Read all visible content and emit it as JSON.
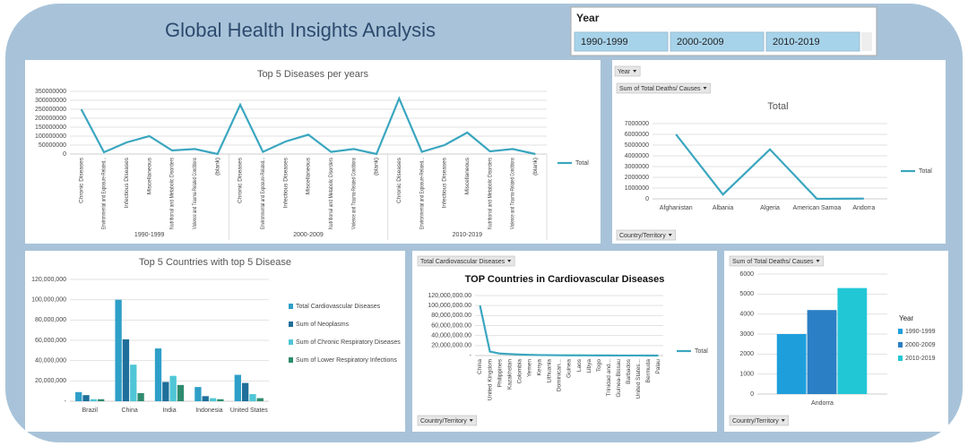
{
  "title": "Global Health Insights Analysis",
  "slicer": {
    "title": "Year",
    "items": [
      "1990-1999",
      "2000-2009",
      "2010-2019"
    ]
  },
  "chart_data": [
    {
      "type": "line",
      "title": "Top 5 Diseases per years",
      "categories": [
        "Chronic Diseases",
        "Environmental and Exposure-Related...",
        "Infectious Diseases",
        "Miscellaneous",
        "Nutritional and Metabolic Disorders",
        "Violence and Trauma-Related Conditions",
        "(blank)",
        "Chronic Diseases",
        "Environmental and Exposure-Related...",
        "Infectious Diseases",
        "Miscellaneous",
        "Nutritional and Metabolic Disorders",
        "Violence and Trauma-Related Conditions",
        "(blank)",
        "Chronic Diseases",
        "Environmental and Exposure-Related...",
        "Infectious Diseases",
        "Miscellaneous",
        "Nutritional and Metabolic Disorders",
        "Violence and Trauma-Related Conditions",
        "(blank)"
      ],
      "groups": [
        "1990-1999",
        "2000-2009",
        "2010-2019"
      ],
      "series": [
        {
          "name": "Total",
          "color": "#3aa6bf",
          "values": [
            250000000,
            10000000,
            65000000,
            100000000,
            20000000,
            28000000,
            0,
            275000000,
            12000000,
            70000000,
            108000000,
            12000000,
            28000000,
            0,
            310000000,
            12000000,
            50000000,
            120000000,
            15000000,
            28000000,
            0
          ]
        }
      ],
      "ylim": [
        0,
        350000000
      ],
      "yticks": [
        0,
        50000000,
        100000000,
        150000000,
        200000000,
        250000000,
        300000000,
        350000000
      ],
      "grid": true
    },
    {
      "type": "line",
      "title": "Total",
      "field_buttons": [
        "Year",
        "Sum of Total Deaths/ Causes",
        "Country/Territory"
      ],
      "categories": [
        "Afghanistan",
        "Albania",
        "Algeria",
        "American Samoa",
        "Andorra"
      ],
      "series": [
        {
          "name": "Total",
          "color": "#3aa6bf",
          "values": [
            6000000,
            400000,
            4600000,
            0,
            20000
          ]
        }
      ],
      "ylim": [
        0,
        7000000
      ],
      "yticks": [
        0,
        1000000,
        2000000,
        3000000,
        4000000,
        5000000,
        6000000,
        7000000
      ],
      "grid": true
    },
    {
      "type": "bar",
      "title": "Top 5 Countries with top 5 Disease",
      "categories": [
        "Brazil",
        "China",
        "India",
        "Indonesia",
        "United States"
      ],
      "series": [
        {
          "name": "Total Cardiovascular Diseases",
          "color": "#2e9fc8",
          "values": [
            9000000,
            100000000,
            52000000,
            14000000,
            26000000
          ]
        },
        {
          "name": "Sum of Neoplasms",
          "color": "#1f6f9a",
          "values": [
            6000000,
            61000000,
            19000000,
            5000000,
            18000000
          ]
        },
        {
          "name": "Sum of Chronic Respiratory Diseases",
          "color": "#4fc6d6",
          "values": [
            2000000,
            36000000,
            25000000,
            3000000,
            7000000
          ]
        },
        {
          "name": "Sum of Lower Respiratory Infections",
          "color": "#2e8b6e",
          "values": [
            2000000,
            8000000,
            16000000,
            2000000,
            3000000
          ]
        }
      ],
      "ylim": [
        0,
        120000000
      ],
      "yticks": [
        {
          "value": 0,
          "label": "-"
        },
        {
          "value": 20000000,
          "label": "20,000,000"
        },
        {
          "value": 40000000,
          "label": "40,000,000"
        },
        {
          "value": 60000000,
          "label": "60,000,000"
        },
        {
          "value": 80000000,
          "label": "80,000,000"
        },
        {
          "value": 100000000,
          "label": "100,000,000"
        },
        {
          "value": 120000000,
          "label": "120,000,000"
        }
      ],
      "grid": true
    },
    {
      "type": "line",
      "title": "TOP Countries in Cardiovascular Diseases",
      "field_buttons": [
        "Total Cardiovascular Diseases",
        "Country/Territory"
      ],
      "categories": [
        "China",
        "United Kingdom",
        "Philippines",
        "Kazakhstan",
        "Colombia",
        "Yemen",
        "Kenya",
        "Lithuania",
        "Dominican...",
        "Guinea",
        "Laos",
        "Libya",
        "Togo",
        "Trinidad and...",
        "Guinea-Bissau",
        "Barbados",
        "United States...",
        "Bermuda",
        "Palau"
      ],
      "series": [
        {
          "name": "Total",
          "color": "#3aa6bf",
          "values": [
            100000000,
            8000000,
            4000000,
            3000000,
            2000000,
            1500000,
            1000000,
            800000,
            600000,
            500000,
            400000,
            300000,
            250000,
            200000,
            150000,
            100000,
            80000,
            50000,
            20000
          ]
        }
      ],
      "ylim": [
        0,
        120000000
      ],
      "yticks": [
        {
          "value": 0,
          "label": "-"
        },
        {
          "value": 20000000,
          "label": "20,000,000.00"
        },
        {
          "value": 40000000,
          "label": "40,000,000.00"
        },
        {
          "value": 60000000,
          "label": "60,000,000.00"
        },
        {
          "value": 80000000,
          "label": "80,000,000.00"
        },
        {
          "value": 100000000,
          "label": "100,000,000.00"
        },
        {
          "value": 120000000,
          "label": "120,000,000.00"
        }
      ],
      "grid": true
    },
    {
      "type": "bar",
      "legend_title": "Year",
      "field_buttons": [
        "Sum of Total Deaths/ Causes",
        "Country/Territory"
      ],
      "categories": [
        "Andorra"
      ],
      "series": [
        {
          "name": "1990-1999",
          "color": "#1e9fdc",
          "values": [
            3000
          ]
        },
        {
          "name": "2000-2009",
          "color": "#2b7fc4",
          "values": [
            4200
          ]
        },
        {
          "name": "2010-2019",
          "color": "#22c7d6",
          "values": [
            5300
          ]
        }
      ],
      "ylim": [
        0,
        6000
      ],
      "yticks": [
        0,
        1000,
        2000,
        3000,
        4000,
        5000,
        6000
      ],
      "grid": true
    }
  ]
}
